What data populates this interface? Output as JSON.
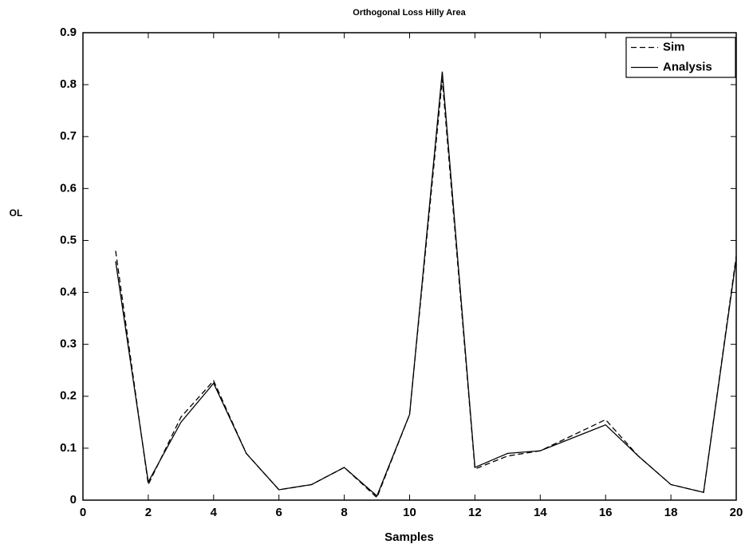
{
  "chart_data": {
    "type": "line",
    "title": "Orthogonal Loss Hilly Area",
    "x_label": "Samples",
    "y_label": "OL",
    "x": [
      1,
      2,
      3,
      4,
      5,
      6,
      7,
      8,
      9,
      10,
      11,
      12,
      13,
      14,
      15,
      16,
      17,
      18,
      19,
      20
    ],
    "series": [
      {
        "name": "Sim",
        "color": "#000000",
        "linestyle": "dashed",
        "values": [
          0.48,
          0.03,
          0.16,
          0.23,
          0.09,
          0.02,
          0.03,
          0.063,
          0.005,
          0.165,
          0.81,
          0.06,
          0.085,
          0.095,
          0.125,
          0.155,
          0.085,
          0.03,
          0.015,
          0.47
        ]
      },
      {
        "name": "Analysis",
        "color": "#000000",
        "linestyle": "solid",
        "values": [
          0.46,
          0.035,
          0.15,
          0.225,
          0.09,
          0.02,
          0.03,
          0.063,
          0.008,
          0.165,
          0.825,
          0.063,
          0.09,
          0.095,
          0.12,
          0.145,
          0.085,
          0.03,
          0.015,
          0.465
        ]
      }
    ],
    "xlim": [
      0,
      20
    ],
    "ylim": [
      0,
      0.9
    ],
    "xticks": [
      0,
      2,
      4,
      6,
      8,
      10,
      12,
      14,
      16,
      18,
      20
    ],
    "yticks": [
      0,
      0.1,
      0.2,
      0.3,
      0.4,
      0.5,
      0.6,
      0.7,
      0.8,
      0.9
    ],
    "legend": "upper right"
  }
}
